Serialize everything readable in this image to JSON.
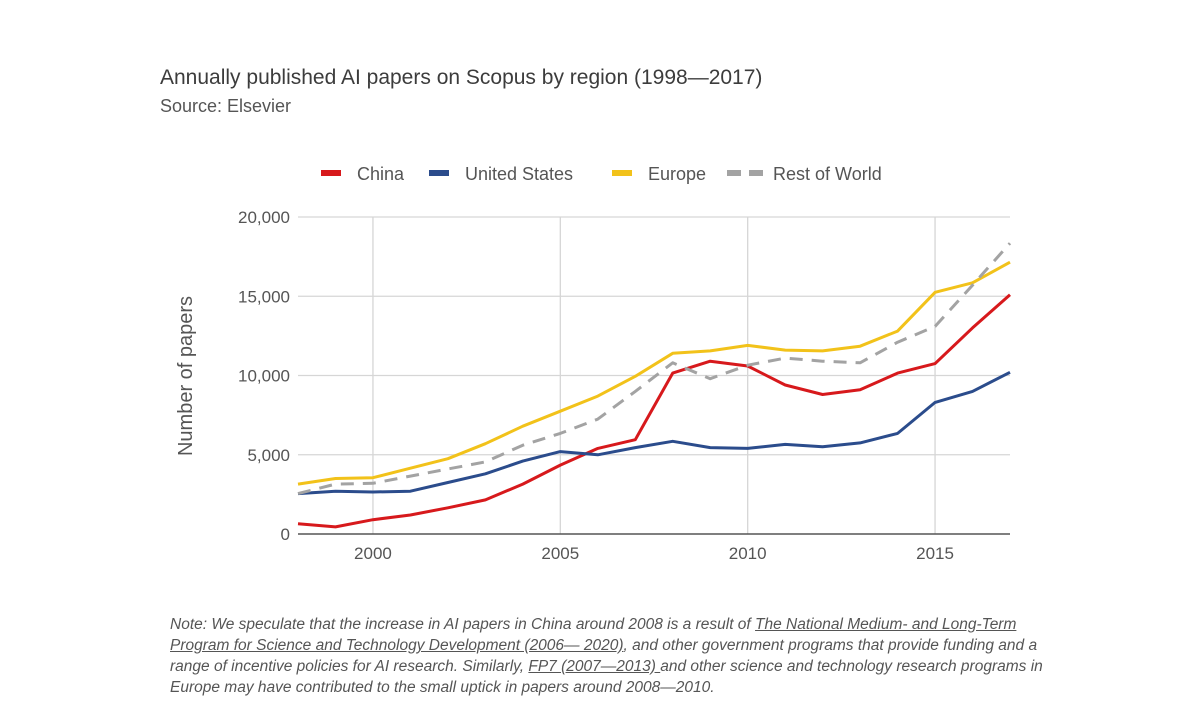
{
  "chart_data": {
    "type": "line",
    "title": "Annually published AI papers on Scopus by region (1998—2017)",
    "subtitle": "Source: Elsevier",
    "xlabel": "",
    "ylabel": "Number of papers",
    "xlim": [
      1998,
      2017
    ],
    "ylim": [
      0,
      20000
    ],
    "grid": true,
    "legend_position": "top",
    "x": [
      1998,
      1999,
      2000,
      2001,
      2002,
      2003,
      2004,
      2005,
      2006,
      2007,
      2008,
      2009,
      2010,
      2011,
      2012,
      2013,
      2014,
      2015,
      2016,
      2017
    ],
    "x_ticks": [
      2000,
      2005,
      2010,
      2015
    ],
    "x_tick_labels": [
      "2000",
      "2005",
      "2010",
      "2015"
    ],
    "y_ticks": [
      0,
      5000,
      10000,
      15000,
      20000
    ],
    "y_tick_labels": [
      "0",
      "5,000",
      "10,000",
      "15,000",
      "20,000"
    ],
    "series": [
      {
        "name": "China",
        "color": "#d7191c",
        "dashed": false,
        "values": [
          650,
          450,
          900,
          1200,
          1650,
          2150,
          3150,
          4350,
          5400,
          5950,
          10150,
          10900,
          10600,
          9400,
          8800,
          9100,
          10150,
          10750,
          13000,
          15100
        ]
      },
      {
        "name": "United States",
        "color": "#2b4c8c",
        "dashed": false,
        "values": [
          2550,
          2700,
          2650,
          2700,
          3250,
          3800,
          4600,
          5200,
          5000,
          5450,
          5850,
          5450,
          5400,
          5650,
          5500,
          5750,
          6350,
          8300,
          9000,
          10200
        ]
      },
      {
        "name": "Europe",
        "color": "#f2c21a",
        "dashed": false,
        "values": [
          3150,
          3500,
          3550,
          4150,
          4750,
          5700,
          6800,
          7750,
          8700,
          9950,
          11400,
          11550,
          11900,
          11600,
          11550,
          11850,
          12800,
          15250,
          15850,
          17150
        ]
      },
      {
        "name": "Rest of World",
        "color": "#a3a3a3",
        "dashed": true,
        "values": [
          2550,
          3150,
          3200,
          3650,
          4100,
          4550,
          5600,
          6350,
          7250,
          9000,
          10800,
          9800,
          10650,
          11100,
          10900,
          10800,
          12100,
          13100,
          15700,
          18350
        ]
      }
    ]
  },
  "note": {
    "prefix": "Note: We speculate that the increase in AI papers in China around 2008 is a result of ",
    "link1": "The National Medium- and Long-Term Program for Science and Technology Development (2006— 2020)",
    "middle": ", and other government programs that provide funding and a range of incentive policies for AI research. Similarly, ",
    "link2": "FP7 (2007—2013) ",
    "suffix": "and other science and technology research programs in Europe may have contributed to the small uptick in papers around 2008—2010."
  }
}
